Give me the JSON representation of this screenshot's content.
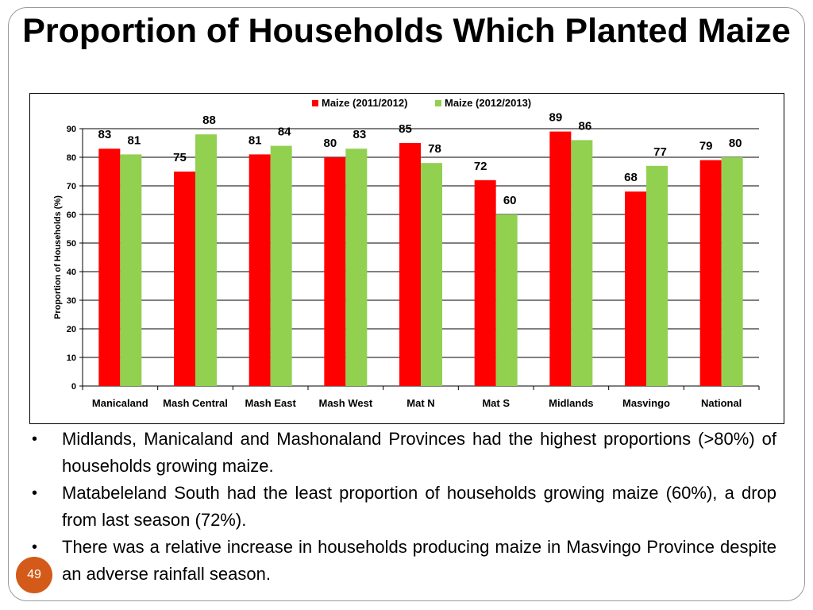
{
  "slide": {
    "title": "Proportion of Households Which Planted Maize",
    "page_number": "49"
  },
  "chart_data": {
    "type": "bar",
    "title": "",
    "xlabel": "",
    "ylabel": "Proportion of Households (%)",
    "ylim": [
      0,
      90
    ],
    "yticks": [
      0,
      10,
      20,
      30,
      40,
      50,
      60,
      70,
      80,
      90
    ],
    "grid": true,
    "legend_position": "top",
    "categories": [
      "Manicaland",
      "Mash Central",
      "Mash East",
      "Mash West",
      "Mat N",
      "Mat S",
      "Midlands",
      "Masvingo",
      "National"
    ],
    "series": [
      {
        "name": "Maize (2011/2012)",
        "color": "#ff0000",
        "values": [
          83,
          75,
          81,
          80,
          85,
          72,
          89,
          68,
          79
        ]
      },
      {
        "name": "Maize (2012/2013)",
        "color": "#92d050",
        "values": [
          81,
          88,
          84,
          83,
          78,
          60,
          86,
          77,
          80
        ]
      }
    ]
  },
  "bullets": [
    {
      "text": "Midlands, Manicaland and Mashonaland Provinces had the highest proportions (>80%) of households growing maize."
    },
    {
      "text": "Matabeleland South had the least proportion of households growing maize (60%), a drop from last season (72%)."
    },
    {
      "text": "There was a relative increase in households producing maize in Masvingo Province despite an adverse rainfall season."
    }
  ],
  "bullet_symbol": "•"
}
